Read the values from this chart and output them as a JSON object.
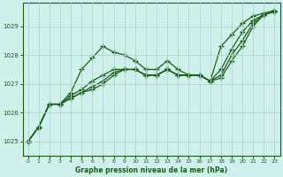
{
  "background_color": "#cff0eb",
  "grid_color": "#aad8d0",
  "line_color": "#1a5e1a",
  "title": "Graphe pression niveau de la mer (hPa)",
  "xlim": [
    -0.5,
    23.5
  ],
  "ylim": [
    1024.5,
    1029.8
  ],
  "yticks": [
    1025,
    1026,
    1027,
    1028,
    1029
  ],
  "xticks": [
    0,
    1,
    2,
    3,
    4,
    5,
    6,
    7,
    8,
    9,
    10,
    11,
    12,
    13,
    14,
    15,
    16,
    17,
    18,
    19,
    20,
    21,
    22,
    23
  ],
  "series": [
    [
      1025.0,
      1025.5,
      1026.3,
      1026.3,
      1026.7,
      1027.5,
      1027.9,
      1028.3,
      1028.1,
      1028.0,
      1027.8,
      1027.5,
      1027.5,
      1027.8,
      1027.5,
      1027.3,
      1027.3,
      1027.1,
      1028.3,
      1028.7,
      1029.1,
      1029.35,
      1029.45,
      1029.55
    ],
    [
      1025.0,
      1025.5,
      1026.3,
      1026.3,
      1026.6,
      1026.8,
      1027.1,
      1027.3,
      1027.5,
      1027.5,
      1027.5,
      1027.3,
      1027.3,
      1027.5,
      1027.3,
      1027.3,
      1027.3,
      1027.1,
      1027.5,
      1028.2,
      1028.8,
      1029.2,
      1029.4,
      1029.5
    ],
    [
      1025.0,
      1025.5,
      1026.3,
      1026.3,
      1026.5,
      1026.7,
      1026.9,
      1027.1,
      1027.4,
      1027.5,
      1027.5,
      1027.3,
      1027.3,
      1027.5,
      1027.3,
      1027.3,
      1027.3,
      1027.1,
      1027.3,
      1028.0,
      1028.5,
      1029.1,
      1029.4,
      1029.5
    ],
    [
      1025.0,
      1025.5,
      1026.3,
      1026.3,
      1026.5,
      1026.7,
      1026.8,
      1027.0,
      1027.3,
      1027.5,
      1027.5,
      1027.3,
      1027.3,
      1027.5,
      1027.3,
      1027.3,
      1027.3,
      1027.1,
      1027.2,
      1027.8,
      1028.3,
      1029.0,
      1029.4,
      1029.5
    ]
  ]
}
